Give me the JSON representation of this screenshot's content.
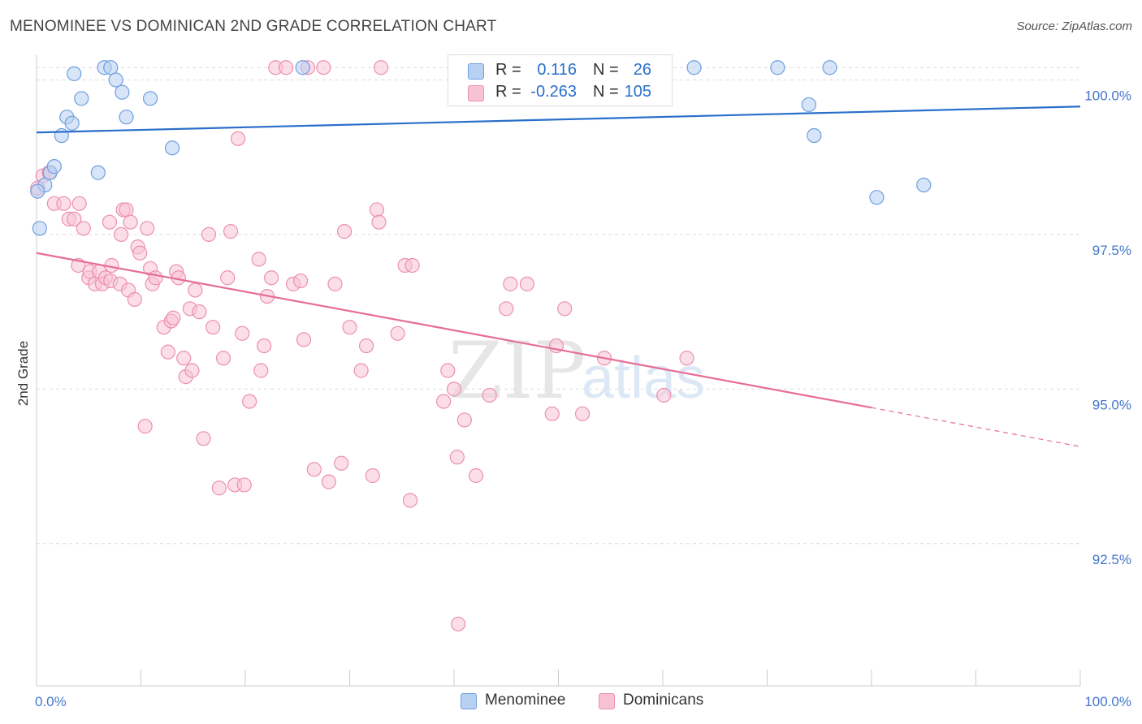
{
  "header": {
    "title": "MENOMINEE VS DOMINICAN 2ND GRADE CORRELATION CHART",
    "source": "Source: ZipAtlas.com"
  },
  "colors": {
    "menominee_fill": "#b8d0f2",
    "menominee_stroke": "#6f9fe0",
    "menominee_line": "#2a6fcb",
    "dominican_fill": "#f7c3d4",
    "dominican_stroke": "#ec90b0",
    "dominican_line": "#e76d97",
    "tick_label": "#4477cc",
    "grid": "#dcdcdc"
  },
  "legend_top": {
    "rows": [
      {
        "r_label": "R =",
        "r_value": "0.116",
        "n_label": "N =",
        "n_value": "26"
      },
      {
        "r_label": "R =",
        "r_value": "-0.263",
        "n_label": "N =",
        "n_value": "105"
      }
    ]
  },
  "legend_bottom": {
    "items": [
      {
        "label": "Menominee"
      },
      {
        "label": "Dominicans"
      }
    ]
  },
  "watermark": {
    "zip": "ZIP",
    "atlas": "atlas"
  },
  "chart_data": {
    "type": "scatter",
    "title": "MENOMINEE VS DOMINICAN 2ND GRADE CORRELATION CHART",
    "xlabel": "",
    "ylabel": "2nd Grade",
    "xlim": [
      0,
      100
    ],
    "ylim": [
      90.2,
      100.4
    ],
    "x_tick_labels": [
      "0.0%",
      "100.0%"
    ],
    "y_ticks": [
      92.5,
      95.0,
      97.5,
      100.0
    ],
    "y_tick_labels": [
      "92.5%",
      "95.0%",
      "97.5%",
      "100.0%"
    ],
    "grid": true,
    "legend_position": "top-center",
    "series": [
      {
        "name": "Menominee",
        "trend": {
          "x0": 0,
          "y0": 99.15,
          "x1": 100,
          "y1": 99.57
        },
        "points": [
          [
            0.3,
            97.6
          ],
          [
            0.8,
            98.3
          ],
          [
            1.3,
            98.5
          ],
          [
            1.7,
            98.6
          ],
          [
            2.4,
            99.1
          ],
          [
            2.9,
            99.4
          ],
          [
            3.4,
            99.3
          ],
          [
            3.6,
            100.1
          ],
          [
            4.3,
            99.7
          ],
          [
            5.9,
            98.5
          ],
          [
            6.5,
            100.2
          ],
          [
            7.1,
            100.2
          ],
          [
            7.6,
            100.0
          ],
          [
            8.2,
            99.8
          ],
          [
            8.6,
            99.4
          ],
          [
            10.9,
            99.7
          ],
          [
            13.0,
            98.9
          ],
          [
            25.5,
            100.2
          ],
          [
            63.0,
            100.2
          ],
          [
            71.0,
            100.2
          ],
          [
            74.0,
            99.6
          ],
          [
            74.5,
            99.1
          ],
          [
            76.0,
            100.2
          ],
          [
            80.5,
            98.1
          ],
          [
            85.0,
            98.3
          ],
          [
            0.1,
            98.2
          ]
        ]
      },
      {
        "name": "Dominicans",
        "trend": {
          "x0": 0,
          "y0": 97.2,
          "x1": 80,
          "y1": 94.7,
          "dash_to_x": 100,
          "dash_to_y": 94.07
        },
        "points": [
          [
            0.1,
            98.25
          ],
          [
            0.6,
            98.45
          ],
          [
            1.2,
            98.5
          ],
          [
            1.7,
            98.0
          ],
          [
            2.6,
            98.0
          ],
          [
            3.1,
            97.75
          ],
          [
            3.6,
            97.75
          ],
          [
            4.0,
            97.0
          ],
          [
            4.1,
            98.0
          ],
          [
            4.5,
            97.6
          ],
          [
            5.0,
            96.8
          ],
          [
            5.1,
            96.9
          ],
          [
            5.6,
            96.7
          ],
          [
            6.0,
            96.9
          ],
          [
            6.3,
            96.7
          ],
          [
            6.6,
            96.8
          ],
          [
            7.0,
            97.7
          ],
          [
            7.1,
            96.75
          ],
          [
            7.2,
            97.0
          ],
          [
            8.0,
            96.7
          ],
          [
            8.1,
            97.5
          ],
          [
            8.3,
            97.9
          ],
          [
            8.6,
            97.9
          ],
          [
            8.8,
            96.6
          ],
          [
            9.0,
            97.7
          ],
          [
            9.4,
            96.45
          ],
          [
            9.7,
            97.3
          ],
          [
            9.9,
            97.2
          ],
          [
            10.4,
            94.4
          ],
          [
            10.6,
            97.6
          ],
          [
            10.9,
            96.95
          ],
          [
            11.1,
            96.7
          ],
          [
            11.4,
            96.8
          ],
          [
            12.2,
            96.0
          ],
          [
            12.6,
            95.6
          ],
          [
            12.9,
            96.1
          ],
          [
            13.1,
            96.15
          ],
          [
            13.4,
            96.9
          ],
          [
            13.6,
            96.8
          ],
          [
            14.1,
            95.5
          ],
          [
            14.3,
            95.2
          ],
          [
            14.7,
            96.3
          ],
          [
            14.9,
            95.3
          ],
          [
            15.2,
            96.6
          ],
          [
            15.6,
            96.25
          ],
          [
            16.0,
            94.2
          ],
          [
            16.5,
            97.5
          ],
          [
            16.9,
            96.0
          ],
          [
            17.5,
            93.4
          ],
          [
            17.9,
            95.5
          ],
          [
            18.3,
            96.8
          ],
          [
            18.6,
            97.55
          ],
          [
            19.0,
            93.45
          ],
          [
            19.3,
            99.05
          ],
          [
            19.7,
            95.9
          ],
          [
            19.9,
            93.45
          ],
          [
            20.4,
            94.8
          ],
          [
            21.3,
            97.1
          ],
          [
            21.5,
            95.3
          ],
          [
            21.8,
            95.7
          ],
          [
            22.1,
            96.5
          ],
          [
            22.5,
            96.8
          ],
          [
            22.9,
            100.2
          ],
          [
            23.9,
            100.2
          ],
          [
            24.6,
            96.7
          ],
          [
            25.3,
            96.75
          ],
          [
            25.6,
            95.8
          ],
          [
            26.0,
            100.2
          ],
          [
            26.6,
            93.7
          ],
          [
            27.5,
            100.2
          ],
          [
            28.0,
            93.5
          ],
          [
            28.6,
            96.7
          ],
          [
            29.2,
            93.8
          ],
          [
            29.5,
            97.55
          ],
          [
            30.0,
            96.0
          ],
          [
            31.1,
            95.3
          ],
          [
            31.6,
            95.7
          ],
          [
            32.2,
            93.6
          ],
          [
            32.6,
            97.9
          ],
          [
            32.8,
            97.7
          ],
          [
            33.0,
            100.2
          ],
          [
            34.6,
            95.9
          ],
          [
            35.3,
            97.0
          ],
          [
            35.8,
            93.2
          ],
          [
            36.0,
            97.0
          ],
          [
            39.0,
            94.8
          ],
          [
            39.4,
            95.3
          ],
          [
            40.0,
            95.0
          ],
          [
            40.3,
            93.9
          ],
          [
            40.4,
            91.2
          ],
          [
            41.0,
            94.5
          ],
          [
            42.1,
            93.6
          ],
          [
            43.4,
            94.9
          ],
          [
            45.0,
            96.3
          ],
          [
            45.4,
            96.7
          ],
          [
            47.0,
            96.7
          ],
          [
            49.4,
            94.6
          ],
          [
            49.8,
            95.7
          ],
          [
            50.6,
            96.3
          ],
          [
            52.3,
            94.6
          ],
          [
            54.4,
            95.5
          ],
          [
            56.0,
            100.2
          ],
          [
            57.4,
            100.2
          ],
          [
            60.1,
            94.9
          ],
          [
            62.3,
            95.5
          ]
        ]
      }
    ]
  }
}
